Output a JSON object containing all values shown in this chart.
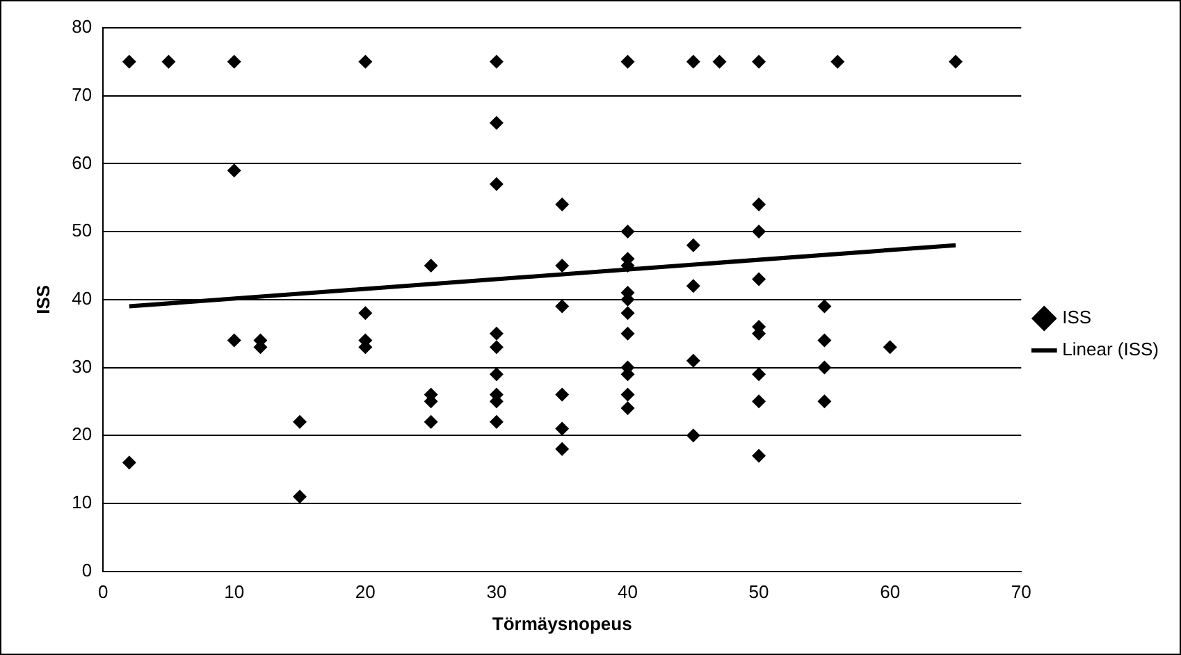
{
  "chart_data": {
    "type": "scatter",
    "xlabel": "Törmäysnopeus",
    "ylabel": "ISS",
    "xlim": [
      0,
      70
    ],
    "xticks": [
      0,
      10,
      20,
      30,
      40,
      50,
      60,
      70
    ],
    "ylim": [
      0,
      80
    ],
    "yticks": [
      0,
      10,
      20,
      30,
      40,
      50,
      60,
      70,
      80
    ],
    "grid": "y",
    "legend": "right",
    "series": [
      {
        "name": "ISS",
        "type": "scatter",
        "marker": "diamond",
        "color": "#000000",
        "x": [
          2,
          2,
          5,
          10,
          10,
          10,
          12,
          12,
          15,
          15,
          20,
          20,
          20,
          20,
          25,
          25,
          25,
          25,
          30,
          30,
          30,
          30,
          30,
          30,
          30,
          30,
          30,
          35,
          35,
          35,
          35,
          35,
          35,
          40,
          40,
          40,
          40,
          40,
          40,
          40,
          40,
          40,
          40,
          40,
          40,
          45,
          45,
          45,
          45,
          45,
          47,
          50,
          50,
          50,
          50,
          50,
          50,
          50,
          50,
          50,
          55,
          55,
          55,
          55,
          56,
          60,
          65
        ],
        "values": [
          75,
          16,
          75,
          75,
          59,
          34,
          34,
          33,
          22,
          11,
          75,
          38,
          34,
          33,
          45,
          26,
          25,
          22,
          75,
          66,
          57,
          35,
          33,
          29,
          26,
          25,
          22,
          54,
          45,
          39,
          26,
          21,
          18,
          75,
          50,
          46,
          45,
          41,
          40,
          38,
          35,
          30,
          29,
          26,
          24,
          75,
          48,
          42,
          31,
          20,
          75,
          75,
          54,
          50,
          43,
          36,
          35,
          29,
          25,
          17,
          39,
          34,
          30,
          25,
          75,
          33,
          75
        ]
      },
      {
        "name": "Linear (ISS)",
        "type": "line",
        "marker": "none",
        "line_style": "solid",
        "color": "#000000",
        "x": [
          2,
          65
        ],
        "values": [
          39,
          48
        ]
      }
    ]
  }
}
